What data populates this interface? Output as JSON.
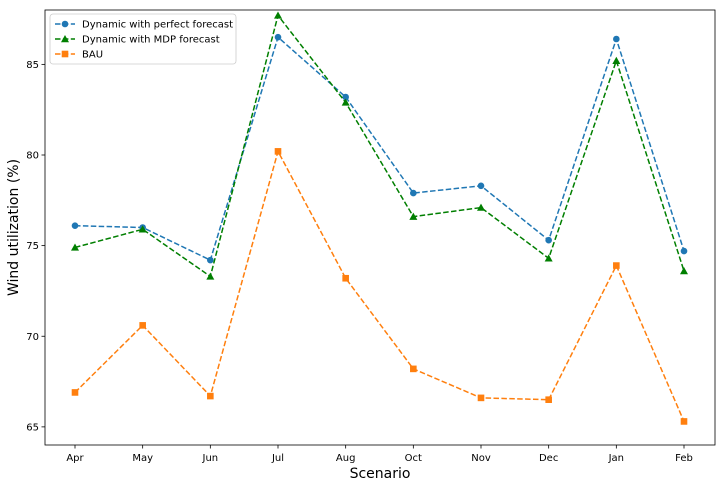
{
  "chart_data": {
    "type": "line",
    "xlabel": "Scenario",
    "ylabel": "Wind utilization (%)",
    "categories": [
      "Apr",
      "May",
      "Jun",
      "Jul",
      "Aug",
      "Oct",
      "Nov",
      "Dec",
      "Jan",
      "Feb"
    ],
    "ylim": [
      64.0,
      88.0
    ],
    "yticks": [
      65,
      70,
      75,
      80,
      85
    ],
    "grid": false,
    "legend_position": "top-left",
    "series": [
      {
        "name": "Dynamic with perfect forecast",
        "color": "#1f77b4",
        "marker": "circle",
        "line_style": "dashed",
        "values": [
          76.1,
          76.0,
          74.2,
          86.5,
          83.2,
          77.9,
          78.3,
          75.3,
          86.4,
          74.7
        ]
      },
      {
        "name": "Dynamic with MDP forecast",
        "color": "#007f00",
        "marker": "triangle",
        "line_style": "dashed",
        "values": [
          74.9,
          75.9,
          73.3,
          87.7,
          82.9,
          76.6,
          77.1,
          74.3,
          85.2,
          73.6
        ]
      },
      {
        "name": "BAU",
        "color": "#ff7f0e",
        "marker": "square",
        "line_style": "dashed",
        "values": [
          66.9,
          70.6,
          66.7,
          80.2,
          73.2,
          68.2,
          66.6,
          66.5,
          73.9,
          65.3
        ]
      }
    ]
  }
}
